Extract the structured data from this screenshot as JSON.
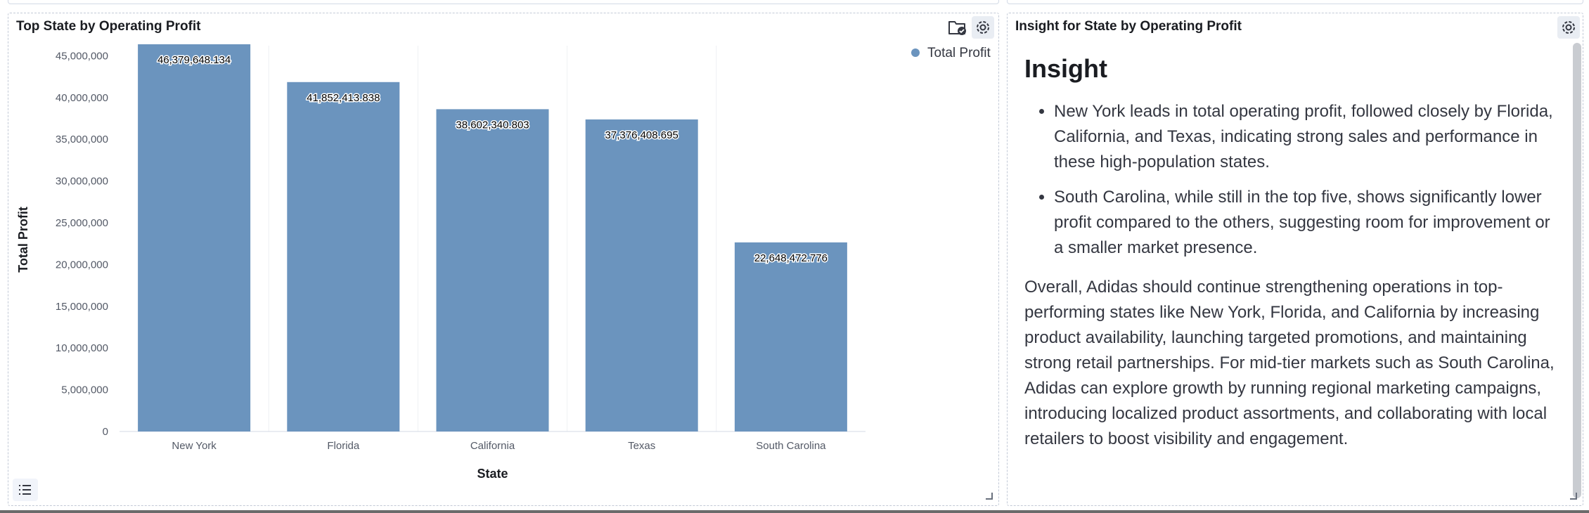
{
  "chart_panel": {
    "title": "Top State by Operating Profit",
    "icons": [
      "folder-check-icon",
      "gear-icon",
      "list-icon"
    ]
  },
  "insight_panel": {
    "title": "Insight for State by Operating Profit",
    "heading": "Insight",
    "bullets": [
      "New York leads in total operating profit, followed closely by Florida, California, and Texas, indicating strong sales and performance in these high-population states.",
      "South Carolina, while still in the top five, shows significantly lower profit compared to the others, suggesting room for improvement or a smaller market presence."
    ],
    "paragraph": "Overall, Adidas should continue strengthening operations in top-performing states like New York, Florida, and California by increasing product availability, launching targeted promotions, and maintaining strong retail partnerships. For mid-tier markets such as South Carolina, Adidas can explore growth by running regional marketing campaigns, introducing localized product assortments, and collaborating with local retailers to boost visibility and engagement."
  },
  "colors": {
    "bar": "#6b94be",
    "grid": "#eef0f3",
    "text": "#343741"
  },
  "chart_data": {
    "type": "bar",
    "title": "Top State by Operating Profit",
    "xlabel": "State",
    "ylabel": "Total Profit",
    "categories": [
      "New York",
      "Florida",
      "California",
      "Texas",
      "South Carolina"
    ],
    "series": [
      {
        "name": "Total Profit",
        "values": [
          46379648.134,
          41852413.838,
          38602340.803,
          37376408.695,
          22648472.776
        ]
      }
    ],
    "data_labels": [
      "46,379,648.134",
      "41,852,413.838",
      "38,602,340.803",
      "37,376,408.695",
      "22,648,472.776"
    ],
    "yticks": [
      "0",
      "5,000,000",
      "10,000,000",
      "15,000,000",
      "20,000,000",
      "25,000,000",
      "30,000,000",
      "35,000,000",
      "40,000,000",
      "45,000,000"
    ],
    "ylim": [
      0,
      46379648.134
    ],
    "legend": "top-right",
    "grid": "vertical"
  }
}
